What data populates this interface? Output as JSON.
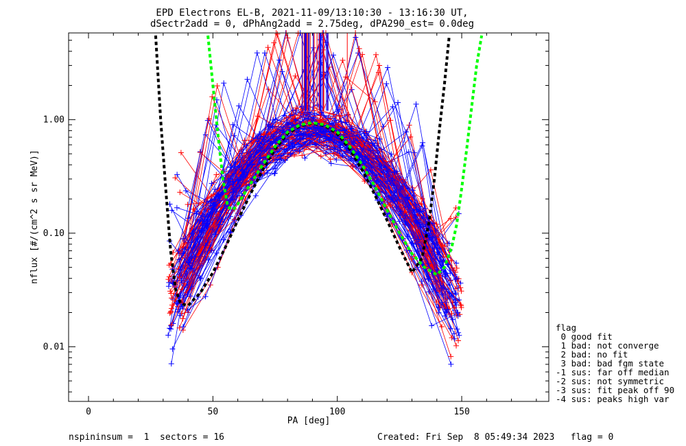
{
  "title_line1": "EPD Electrons EL-B, 2021-11-09/13:10:30 - 13:16:30 UT,",
  "title_line2": "dSectr2add = 0, dPhAng2add = 2.75deg, dPA290_est=    0.0deg",
  "footer_left": "nspininsum =  1  sectors = 16",
  "footer_right": "Created: Fri Sep  8 05:49:34 2023   flag = 0",
  "legend": {
    "title": "flag",
    "items": [
      " 0 good fit",
      " 1 bad: not converge",
      " 2 bad: no fit",
      " 3 bad: bad fgm state",
      "-1 sus: far off median",
      "-2 sus: not symmetric",
      "-3 sus: fit peak off 90",
      "-4 sus: peaks high var"
    ]
  },
  "colors": {
    "blue": "#0000ff",
    "red": "#ff0000",
    "black_fit": "#000000",
    "green_fit": "#00ff00"
  },
  "chart_data": {
    "type": "line",
    "title": "EPD Electrons EL-B, 2021-11-09/13:10:30 - 13:16:30 UT, dSectr2add = 0, dPhAng2add = 2.75deg, dPA290_est=    0.0deg",
    "xlabel": "PA [deg]",
    "ylabel": "nflux [#/(cm^2 s sr MeV)]",
    "xlim": [
      -8,
      185
    ],
    "ylim": [
      0.0033,
      5.8
    ],
    "yscale": "log",
    "x_ticks": [
      0,
      50,
      100,
      150
    ],
    "x_tick_labels": [
      "0",
      "50",
      "100",
      "150"
    ],
    "y_ticks": [
      0.01,
      0.1,
      1.0
    ],
    "y_tick_labels": [
      "0.01",
      "0.10",
      "1.00"
    ],
    "grid": false,
    "legend_position": "right-outside",
    "fit_curves": [
      {
        "color": "black",
        "style": "dashed",
        "x": [
          27,
          29,
          31,
          33,
          35,
          37,
          40,
          45,
          50,
          55,
          60,
          65,
          70,
          75,
          80,
          85,
          90,
          95,
          100,
          105,
          110,
          115,
          120,
          125,
          130,
          134,
          137,
          139,
          141,
          143,
          145
        ],
        "y": [
          5.5,
          1.0,
          0.25,
          0.07,
          0.032,
          0.024,
          0.023,
          0.03,
          0.045,
          0.075,
          0.13,
          0.22,
          0.36,
          0.55,
          0.75,
          0.88,
          0.93,
          0.88,
          0.75,
          0.55,
          0.36,
          0.22,
          0.13,
          0.075,
          0.045,
          0.06,
          0.13,
          0.3,
          0.8,
          2.0,
          5.5
        ]
      },
      {
        "color": "green",
        "style": "dashed",
        "x": [
          48,
          50,
          52,
          54,
          56,
          58,
          60,
          65,
          70,
          75,
          80,
          85,
          90,
          95,
          100,
          105,
          110,
          115,
          120,
          125,
          130,
          135,
          140,
          143,
          146,
          148,
          150,
          152,
          154,
          156,
          158
        ],
        "y": [
          5.5,
          2.0,
          0.75,
          0.3,
          0.17,
          0.16,
          0.18,
          0.27,
          0.4,
          0.58,
          0.78,
          0.9,
          0.94,
          0.9,
          0.78,
          0.58,
          0.4,
          0.26,
          0.16,
          0.1,
          0.066,
          0.05,
          0.043,
          0.05,
          0.075,
          0.12,
          0.25,
          0.55,
          1.3,
          3.0,
          5.5
        ]
      }
    ],
    "sample_series": [
      {
        "color": "blue",
        "x": [
          36,
          45,
          57,
          69,
          81,
          93,
          105,
          117,
          129,
          141
        ],
        "y": [
          0.024,
          0.04,
          0.14,
          0.4,
          0.8,
          0.88,
          0.62,
          0.23,
          0.07,
          0.022
        ]
      },
      {
        "color": "red",
        "x": [
          38,
          49,
          60,
          71,
          82,
          94,
          106,
          118,
          130,
          142
        ],
        "y": [
          0.014,
          0.035,
          0.15,
          0.45,
          0.95,
          0.92,
          0.55,
          0.17,
          0.045,
          0.015
        ]
      },
      {
        "color": "blue",
        "x": [
          34,
          47,
          58,
          70,
          84,
          96,
          108,
          120,
          132,
          144
        ],
        "y": [
          0.016,
          0.06,
          0.16,
          0.42,
          0.82,
          0.82,
          0.45,
          0.14,
          0.05,
          0.02
        ]
      },
      {
        "color": "red",
        "x": [
          40,
          52,
          63,
          74,
          86,
          98,
          110,
          122,
          134,
          146
        ],
        "y": [
          0.02,
          0.05,
          0.2,
          0.52,
          0.9,
          0.82,
          0.4,
          0.12,
          0.035,
          0.012
        ]
      }
    ],
    "series_generator": {
      "count_blue": 70,
      "count_red": 55,
      "note": ""
    }
  }
}
